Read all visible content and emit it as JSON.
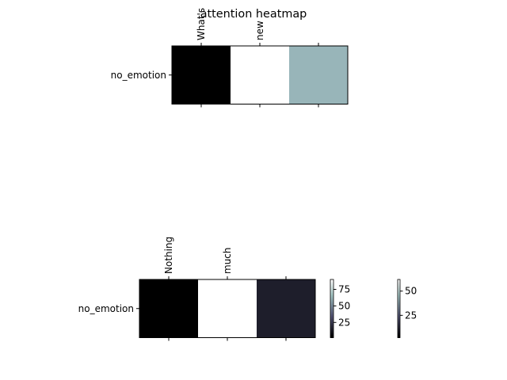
{
  "chart_data": {
    "type": "heatmap",
    "title": "attention heatmap",
    "colormap": "bone",
    "panels": [
      {
        "x_tick_labels": [
          "What's",
          "new",
          ""
        ],
        "y_tick_labels": [
          "no_emotion"
        ],
        "values": [
          [
            2,
            62,
            43
          ]
        ],
        "colorbar_ticks": [
          25,
          50
        ]
      },
      {
        "x_tick_labels": [
          "Nothing",
          "much",
          ""
        ],
        "y_tick_labels": [
          "no_emotion"
        ],
        "values": [
          [
            2,
            90,
            14
          ]
        ],
        "colorbar_ticks": [
          25,
          50,
          75
        ]
      }
    ]
  }
}
